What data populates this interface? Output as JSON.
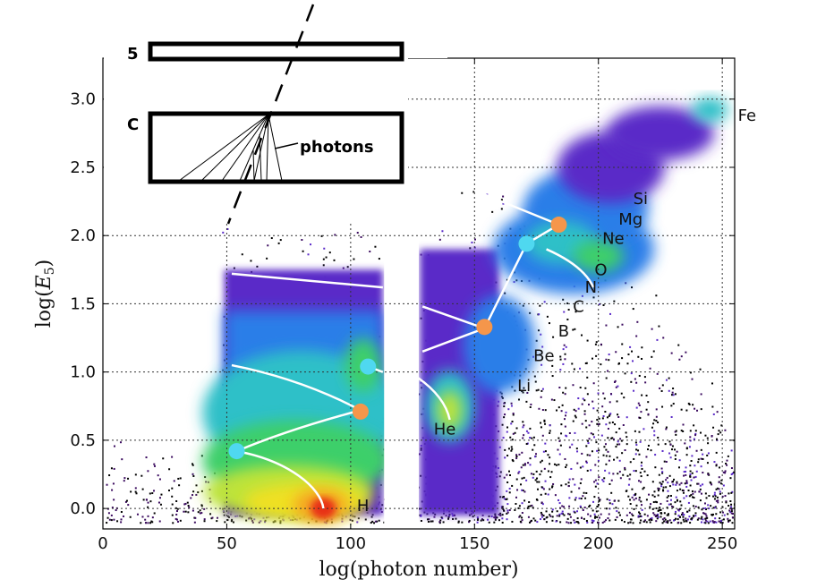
{
  "chart_data": {
    "type": "heatmap",
    "xlabel": "log(photon number)",
    "ylabel": "log(E_5)",
    "xlim": [
      0,
      255
    ],
    "ylim": [
      -0.15,
      3.3
    ],
    "grid": true,
    "xticks": [
      "0",
      "50",
      "100",
      "150",
      "200",
      "250"
    ],
    "xtick_values": [
      0,
      50,
      100,
      150,
      200,
      250
    ],
    "yticks": [
      "0.0",
      "0.5",
      "1.0",
      "1.5",
      "2.0",
      "2.5",
      "3.0"
    ],
    "ytick_values": [
      0.0,
      0.5,
      1.0,
      1.5,
      2.0,
      2.5,
      3.0
    ],
    "element_labels": [
      {
        "text": "H",
        "x": 105,
        "y": 0.02
      },
      {
        "text": "He",
        "x": 138,
        "y": 0.58
      },
      {
        "text": "Li",
        "x": 170,
        "y": 0.9
      },
      {
        "text": "Be",
        "x": 178,
        "y": 1.12
      },
      {
        "text": "B",
        "x": 186,
        "y": 1.3
      },
      {
        "text": "C",
        "x": 192,
        "y": 1.48
      },
      {
        "text": "N",
        "x": 197,
        "y": 1.62
      },
      {
        "text": "O",
        "x": 201,
        "y": 1.75
      },
      {
        "text": "Ne",
        "x": 206,
        "y": 1.98
      },
      {
        "text": "Mg",
        "x": 213,
        "y": 2.12
      },
      {
        "text": "Si",
        "x": 217,
        "y": 2.27
      },
      {
        "text": "Fe",
        "x": 260,
        "y": 2.88
      }
    ],
    "fit_curves": [
      {
        "points": [
          [
            54,
            0.42
          ],
          [
            75,
            0.35
          ],
          [
            88,
            0.15
          ],
          [
            89,
            0.0
          ]
        ]
      },
      {
        "points": [
          [
            54,
            0.42
          ],
          [
            75,
            0.58
          ],
          [
            104,
            0.72
          ]
        ]
      },
      {
        "points": [
          [
            52,
            1.05
          ],
          [
            80,
            0.95
          ],
          [
            104,
            0.72
          ]
        ]
      },
      {
        "points": [
          [
            107,
            1.04
          ],
          [
            113,
            1.0
          ]
        ]
      },
      {
        "points": [
          [
            127,
            0.96
          ],
          [
            138,
            0.82
          ],
          [
            140,
            0.65
          ]
        ]
      },
      {
        "points": [
          [
            52,
            1.72
          ],
          [
            113,
            1.62
          ]
        ]
      },
      {
        "points": [
          [
            129,
            1.48
          ],
          [
            154,
            1.32
          ]
        ]
      },
      {
        "points": [
          [
            129,
            1.15
          ],
          [
            154,
            1.32
          ]
        ]
      },
      {
        "points": [
          [
            154,
            1.32
          ],
          [
            171,
            1.94
          ]
        ]
      },
      {
        "points": [
          [
            171,
            1.94
          ],
          [
            184,
            2.08
          ]
        ]
      },
      {
        "points": [
          [
            179,
            1.9
          ],
          [
            194,
            1.78
          ],
          [
            198,
            1.62
          ]
        ]
      },
      {
        "points": [
          [
            150,
            2.33
          ],
          [
            184,
            2.08
          ]
        ]
      }
    ],
    "markers": [
      {
        "color": "#4fd8f0",
        "x": 54,
        "y": 0.42
      },
      {
        "color": "#f5964b",
        "x": 104,
        "y": 0.71
      },
      {
        "color": "#4fd8f0",
        "x": 107,
        "y": 1.04
      },
      {
        "color": "#f5964b",
        "x": 154,
        "y": 1.33
      },
      {
        "color": "#4fd8f0",
        "x": 171,
        "y": 1.94
      },
      {
        "color": "#f5964b",
        "x": 184,
        "y": 2.08
      }
    ],
    "colormap": [
      "#3a0a5e",
      "#5a2ac8",
      "#2a7ee8",
      "#2ec0c8",
      "#3ccf6a",
      "#bde33a",
      "#f0e020",
      "#f5a020",
      "#e83018"
    ]
  },
  "inset": {
    "layer_top_label": "5",
    "layer_bottom_label": "C",
    "photons_label": "photons"
  }
}
